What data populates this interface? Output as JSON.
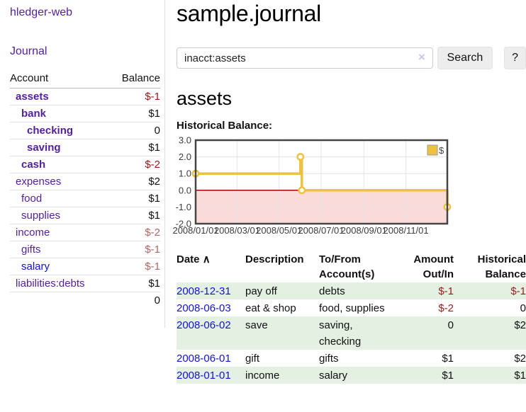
{
  "sidebar": {
    "brand": "hledger-web",
    "nav": {
      "journal": "Journal"
    },
    "accounts_table": {
      "col_account": "Account",
      "col_balance": "Balance",
      "rows": [
        {
          "name": "assets",
          "depth": 0,
          "balance": "$-1",
          "bold": true,
          "blue": false
        },
        {
          "name": "bank",
          "depth": 1,
          "balance": "$1",
          "bold": true,
          "blue": false
        },
        {
          "name": "checking",
          "depth": 2,
          "balance": "0",
          "bold": true,
          "blue": false
        },
        {
          "name": "saving",
          "depth": 2,
          "balance": "$1",
          "bold": true,
          "blue": false
        },
        {
          "name": "cash",
          "depth": 1,
          "balance": "$-2",
          "bold": true,
          "blue": false
        },
        {
          "name": "expenses",
          "depth": 0,
          "balance": "$2",
          "bold": false,
          "blue": false
        },
        {
          "name": "food",
          "depth": 1,
          "balance": "$1",
          "bold": false,
          "blue": false
        },
        {
          "name": "supplies",
          "depth": 1,
          "balance": "$1",
          "bold": false,
          "blue": false
        },
        {
          "name": "income",
          "depth": 0,
          "balance": "$-2",
          "bold": false,
          "blue": false
        },
        {
          "name": "gifts",
          "depth": 1,
          "balance": "$-1",
          "bold": false,
          "blue": false
        },
        {
          "name": "salary",
          "depth": 1,
          "balance": "$-1",
          "bold": false,
          "blue": true
        },
        {
          "name": "liabilities:debts",
          "depth": 0,
          "balance": "$1",
          "bold": false,
          "blue": false
        }
      ],
      "total": "0"
    }
  },
  "main": {
    "title": "sample.journal",
    "search": {
      "value": "inacct:assets",
      "clear_label": "×",
      "search_button": "Search",
      "help_button": "?"
    },
    "account_heading": "assets",
    "chart_title": "Historical Balance:"
  },
  "chart_data": {
    "type": "line",
    "step": true,
    "title": "Historical Balance",
    "xlabel": "",
    "ylabel": "",
    "x_range": [
      "2008-01-01",
      "2008-12-31"
    ],
    "ylim": [
      -2,
      3
    ],
    "yticks": [
      3,
      2,
      1,
      0,
      -1,
      -2
    ],
    "ytick_labels": [
      "3.0",
      "2.0",
      "1.0",
      "0.0",
      "-1.0",
      "-2.0"
    ],
    "xticks": [
      "2008-01-01",
      "2008-03-01",
      "2008-05-01",
      "2008-07-01",
      "2008-09-01",
      "2008-11-01"
    ],
    "xtick_labels": [
      "2008/01/01",
      "2008/03/01",
      "2008/05/01",
      "2008/07/01",
      "2008/09/01",
      "2008/11/01"
    ],
    "series": [
      {
        "name": "$",
        "points": [
          [
            "2008-01-01",
            1
          ],
          [
            "2008-06-01",
            2
          ],
          [
            "2008-06-03",
            0
          ],
          [
            "2008-12-31",
            -1
          ]
        ]
      }
    ],
    "legend_position": "top-right",
    "grid": true,
    "colors": {
      "line": "#edc240",
      "negative_region": "#fbdada",
      "zero_line": "#a40000",
      "grid": "#e4e4e4",
      "border": "#454545"
    }
  },
  "register": {
    "header": {
      "date": "Date",
      "sort_indicator": "∧",
      "description": "Description",
      "tofrom_line1": "To/From",
      "tofrom_line2": "Account(s)",
      "amount_line1": "Amount",
      "amount_line2": "Out/In",
      "balance_line1": "Historical",
      "balance_line2": "Balance"
    },
    "rows": [
      {
        "date": "2008-12-31",
        "description": "pay off",
        "accounts": "debts",
        "amount": "$-1",
        "balance": "$-1"
      },
      {
        "date": "2008-06-03",
        "description": "eat & shop",
        "accounts": "food, supplies",
        "amount": "$-2",
        "balance": "0"
      },
      {
        "date": "2008-06-02",
        "description": "save",
        "accounts": "saving, checking",
        "amount": "0",
        "balance": "$2"
      },
      {
        "date": "2008-06-01",
        "description": "gift",
        "accounts": "gifts",
        "amount": "$1",
        "balance": "$2"
      },
      {
        "date": "2008-01-01",
        "description": "income",
        "accounts": "salary",
        "amount": "$1",
        "balance": "$1"
      }
    ]
  },
  "colors": {
    "accent_purple": "#54219c",
    "link_blue": "#1313cb",
    "negative_strong": "#9d1717",
    "negative_soft": "#b26767",
    "row_stripe_green": "#e3f0e2"
  }
}
